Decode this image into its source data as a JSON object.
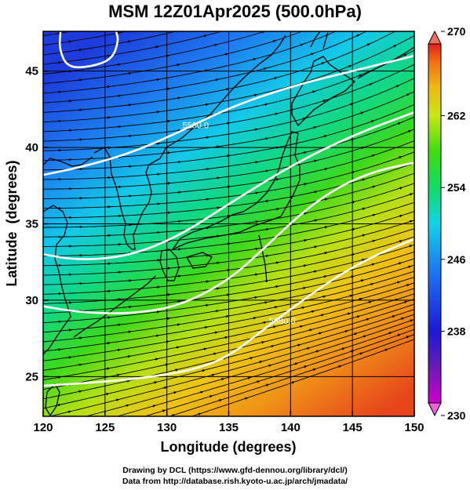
{
  "title": "MSM 12Z01Apr2025 (500.0hPa)",
  "xlabel": "Longitude (degrees)",
  "ylabel": "Latitude  (degrees)",
  "credits": [
    "Drawing by DCL (https://www.gfd-dennou.org/library/dcl/)",
    "Data from http://database.rish.kyoto-u.ac.jp/arch/jmadata/"
  ],
  "chart_data": {
    "type": "heatmap",
    "xlim": [
      120,
      150
    ],
    "ylim": [
      22.4,
      47.6
    ],
    "x_ticks": [
      120,
      125,
      130,
      135,
      140,
      145,
      150
    ],
    "y_ticks": [
      25,
      30,
      35,
      40,
      45
    ],
    "grid": true,
    "colorbar": {
      "min": 230,
      "max": 270,
      "ticks": [
        230,
        238,
        246,
        254,
        262,
        270
      ],
      "colors": [
        "#cc00cc",
        "#6a1ab5",
        "#1a1ad6",
        "#1e6cf0",
        "#14d2e8",
        "#10dc64",
        "#40dc10",
        "#c8e614",
        "#f0b814",
        "#f07014",
        "#e61e1e"
      ],
      "extend": "both"
    },
    "contours": [
      {
        "label": "5500.0",
        "points": [
          [
            120,
            38.2
          ],
          [
            123,
            38.7
          ],
          [
            127,
            39.6
          ],
          [
            131,
            41.0
          ],
          [
            135,
            42.6
          ],
          [
            140,
            44.0
          ],
          [
            145,
            45.0
          ],
          [
            150,
            46.0
          ]
        ]
      },
      {
        "label": "",
        "points": [
          [
            120,
            33.0
          ],
          [
            123,
            32.6
          ],
          [
            127,
            32.9
          ],
          [
            131,
            34.2
          ],
          [
            135,
            36.3
          ],
          [
            140,
            38.8
          ],
          [
            145,
            40.8
          ],
          [
            150,
            42.3
          ]
        ]
      },
      {
        "label": "",
        "points": [
          [
            120,
            29.6
          ],
          [
            123,
            29.2
          ],
          [
            127,
            29.1
          ],
          [
            131,
            29.6
          ],
          [
            135,
            31.3
          ],
          [
            138,
            33.5
          ],
          [
            141,
            35.8
          ],
          [
            144,
            37.5
          ],
          [
            147,
            38.5
          ],
          [
            150,
            39.0
          ]
        ]
      },
      {
        "label": "5880.0",
        "points": [
          [
            120,
            24.4
          ],
          [
            124,
            24.6
          ],
          [
            128,
            24.9
          ],
          [
            132,
            25.4
          ],
          [
            135,
            26.3
          ],
          [
            138,
            28.2
          ],
          [
            141,
            30.0
          ],
          [
            144,
            31.7
          ],
          [
            147,
            33.0
          ],
          [
            150,
            34.0
          ]
        ]
      },
      {
        "label": "",
        "points": [
          [
            121.4,
            47.6
          ],
          [
            121.3,
            46.4
          ],
          [
            122.0,
            45.2
          ],
          [
            124.0,
            45.3
          ],
          [
            125.6,
            45.8
          ],
          [
            126.1,
            47.0
          ],
          [
            125.9,
            47.6
          ]
        ]
      }
    ]
  }
}
